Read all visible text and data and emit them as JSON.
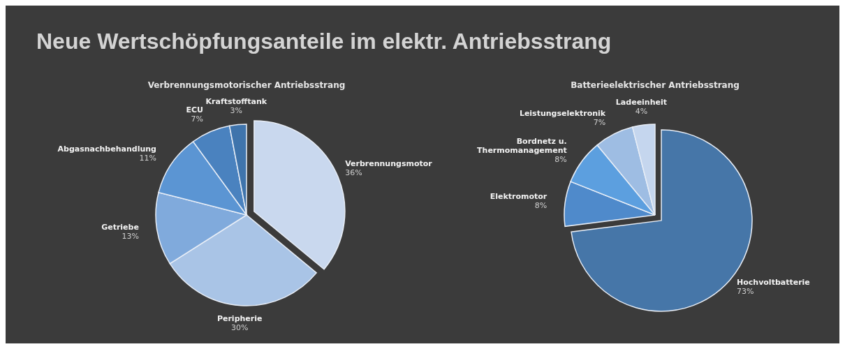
{
  "chart_data": [
    {
      "type": "pie",
      "title": "Neue Wertschöpfungsanteile im elektr. Antriebsstrang",
      "subtitle": "Verbrennungsmotorischer Antriebsstrang",
      "categories": [
        "Verbrennungsmotor",
        "Peripherie",
        "Getriebe",
        "Abgasnachbehandlung",
        "ECU",
        "Kraftstofftank"
      ],
      "values": [
        36,
        30,
        13,
        11,
        7,
        3
      ],
      "colors": [
        "#c9d8ee",
        "#a9c4e6",
        "#80aadc",
        "#5b95d3",
        "#4a82bf",
        "#3f74ac"
      ],
      "value_labels": [
        "36%",
        "30%",
        "13%",
        "11%",
        "7%",
        "3%"
      ]
    },
    {
      "type": "pie",
      "title": "Batterieelektrischer Antriebsstrang",
      "categories": [
        "Hochvoltbatterie",
        "Elektromotor",
        "Bordnetz u.\nThermomanagement",
        "Leistungselektronik",
        "Ladeeinheit"
      ],
      "values": [
        73,
        8,
        8,
        7,
        4
      ],
      "colors": [
        "#4676a8",
        "#4f8acb",
        "#5c9fdf",
        "#9ebde3",
        "#c5d6ee"
      ],
      "value_labels": [
        "73%",
        "8%",
        "8%",
        "7%",
        "4%"
      ]
    }
  ]
}
